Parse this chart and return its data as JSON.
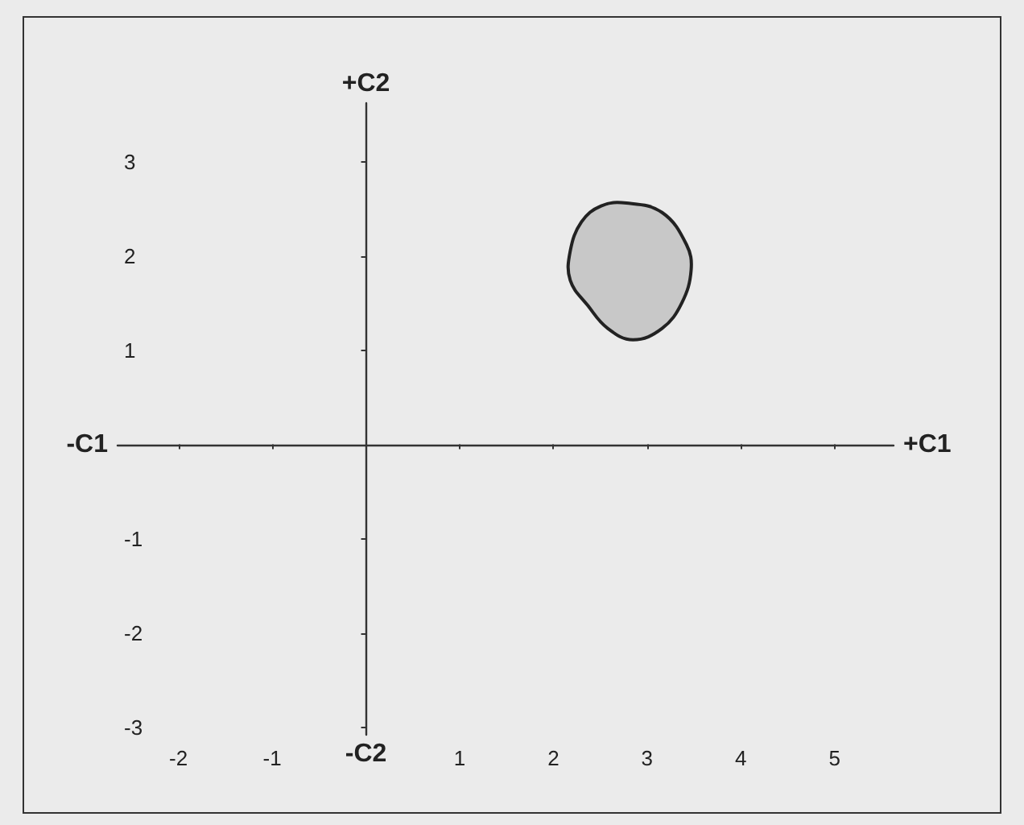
{
  "chart_data": {
    "type": "area",
    "xlabel": "+C1",
    "ylabel": "+C2",
    "annotations": [
      "-C1",
      "-C2"
    ],
    "x": [
      2.78,
      3.16,
      3.42,
      3.47,
      3.37,
      3.16,
      2.85,
      2.58,
      2.37,
      2.18,
      2.18,
      2.3,
      2.51
    ],
    "series": [
      {
        "color": "#c8c8c8",
        "values": [
          2.56,
          2.46,
          2.12,
          1.85,
          1.5,
          1.23,
          1.11,
          1.23,
          1.47,
          1.74,
          2.05,
          2.36,
          2.53
        ]
      }
    ],
    "xlim": [
      -2.65,
      5.63
    ],
    "ylim": [
      -3.08,
      3.62
    ],
    "xticks": [
      -2,
      -1,
      1,
      2,
      3,
      4,
      5
    ],
    "yticks": [
      -3,
      -2,
      -1,
      1,
      2,
      3
    ],
    "grid": false
  }
}
